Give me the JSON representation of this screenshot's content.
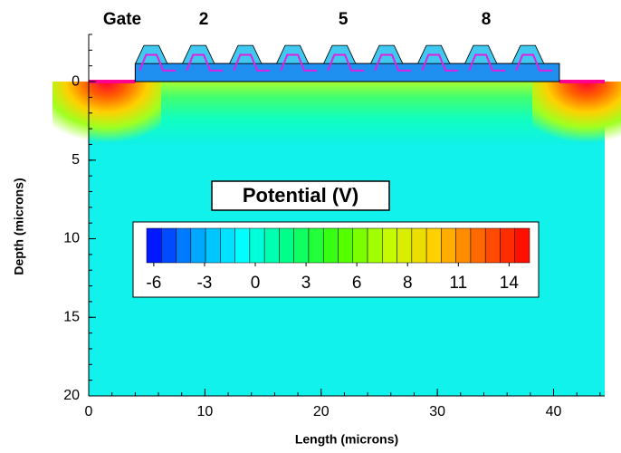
{
  "chart_data": {
    "type": "contour",
    "x_label": "Length (microns)",
    "y_label": "Depth (microns)",
    "xlim": [
      0,
      44.4
    ],
    "ylim": [
      20,
      -3
    ],
    "xticks": [
      0,
      10,
      20,
      30,
      40
    ],
    "yticks": [
      0,
      5,
      10,
      15,
      20
    ],
    "gate_title": "Gate",
    "gate_labels": [
      {
        "value": 9.9,
        "label": "2"
      },
      {
        "value": 21.9,
        "label": "5"
      },
      {
        "value": 34.2,
        "label": "8"
      }
    ],
    "colorbar": {
      "title": "Potential (V)",
      "clim": [
        -6.2,
        15.3
      ],
      "levels": 26,
      "colormap": [
        "#0000ff",
        "#00a0ff",
        "#00ffff",
        "#00ff80",
        "#40ff00",
        "#c0ff00",
        "#ffd000",
        "#ff6000",
        "#ff0000"
      ],
      "ticks": [
        {
          "value": -5.8,
          "label": "-6"
        },
        {
          "value": -2.95,
          "label": "-3"
        },
        {
          "value": -0.1,
          "label": "0"
        },
        {
          "value": 2.75,
          "label": "3"
        },
        {
          "value": 5.6,
          "label": "6"
        },
        {
          "value": 8.45,
          "label": "8"
        },
        {
          "value": 11.3,
          "label": "11"
        },
        {
          "value": 14.15,
          "label": "14"
        }
      ]
    }
  }
}
